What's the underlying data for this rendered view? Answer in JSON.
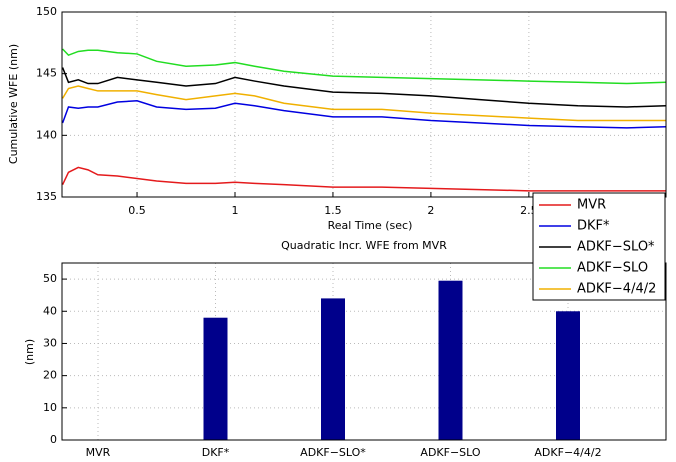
{
  "chart_data": [
    {
      "type": "line",
      "xlabel": "Real Time (sec)",
      "ylabel": "Cumulative WFE (nm)",
      "x": [
        0.12,
        0.15,
        0.2,
        0.25,
        0.3,
        0.4,
        0.5,
        0.6,
        0.75,
        0.9,
        1.0,
        1.1,
        1.25,
        1.5,
        1.75,
        2.0,
        2.25,
        2.5,
        2.75,
        3.0,
        3.2
      ],
      "series": [
        {
          "name": "MVR",
          "color": "#e41a1c",
          "values": [
            136.0,
            137.0,
            137.4,
            137.2,
            136.8,
            136.7,
            136.5,
            136.3,
            136.1,
            136.1,
            136.2,
            136.1,
            136.0,
            135.8,
            135.8,
            135.7,
            135.6,
            135.5,
            135.5,
            135.5,
            135.5
          ]
        },
        {
          "name": "DKF*",
          "color": "#0000e0",
          "values": [
            141.0,
            142.3,
            142.2,
            142.3,
            142.3,
            142.7,
            142.8,
            142.3,
            142.1,
            142.2,
            142.6,
            142.4,
            142.0,
            141.5,
            141.5,
            141.2,
            141.0,
            140.8,
            140.7,
            140.6,
            140.7
          ]
        },
        {
          "name": "ADKF−SLO*",
          "color": "#000000",
          "values": [
            145.5,
            144.3,
            144.5,
            144.2,
            144.2,
            144.7,
            144.5,
            144.3,
            144.0,
            144.2,
            144.7,
            144.4,
            144.0,
            143.5,
            143.4,
            143.2,
            142.9,
            142.6,
            142.4,
            142.3,
            142.4
          ]
        },
        {
          "name": "ADKF−SLO",
          "color": "#22dd22",
          "values": [
            147.0,
            146.5,
            146.8,
            146.9,
            146.9,
            146.7,
            146.6,
            146.0,
            145.6,
            145.7,
            145.9,
            145.6,
            145.2,
            144.8,
            144.7,
            144.6,
            144.5,
            144.4,
            144.3,
            144.2,
            144.3
          ]
        },
        {
          "name": "ADKF−4/4/2",
          "color": "#f0b000",
          "values": [
            143.0,
            143.8,
            144.0,
            143.8,
            143.6,
            143.6,
            143.6,
            143.3,
            142.9,
            143.2,
            143.4,
            143.2,
            142.6,
            142.1,
            142.1,
            141.8,
            141.6,
            141.4,
            141.2,
            141.2,
            141.2
          ]
        }
      ],
      "xlim": [
        0.117,
        3.2
      ],
      "xticks": [
        0.5,
        1,
        1.5,
        2,
        2.5
      ],
      "ylim": [
        135,
        150
      ],
      "yticks": [
        135,
        140,
        145,
        150
      ],
      "grid": true,
      "legend": "lower right"
    },
    {
      "type": "bar",
      "title": "Quadratic Incr. WFE from MVR",
      "ylabel": "(nm)",
      "categories": [
        "MVR",
        "DKF*",
        "ADKF−SLO*",
        "ADKF−SLO",
        "ADKF−4/4/2"
      ],
      "values": [
        0,
        38,
        44,
        49.5,
        40
      ],
      "color": "#00008b",
      "ylim": [
        0,
        55
      ],
      "yticks": [
        0,
        10,
        20,
        30,
        40,
        50
      ],
      "grid": true
    }
  ]
}
